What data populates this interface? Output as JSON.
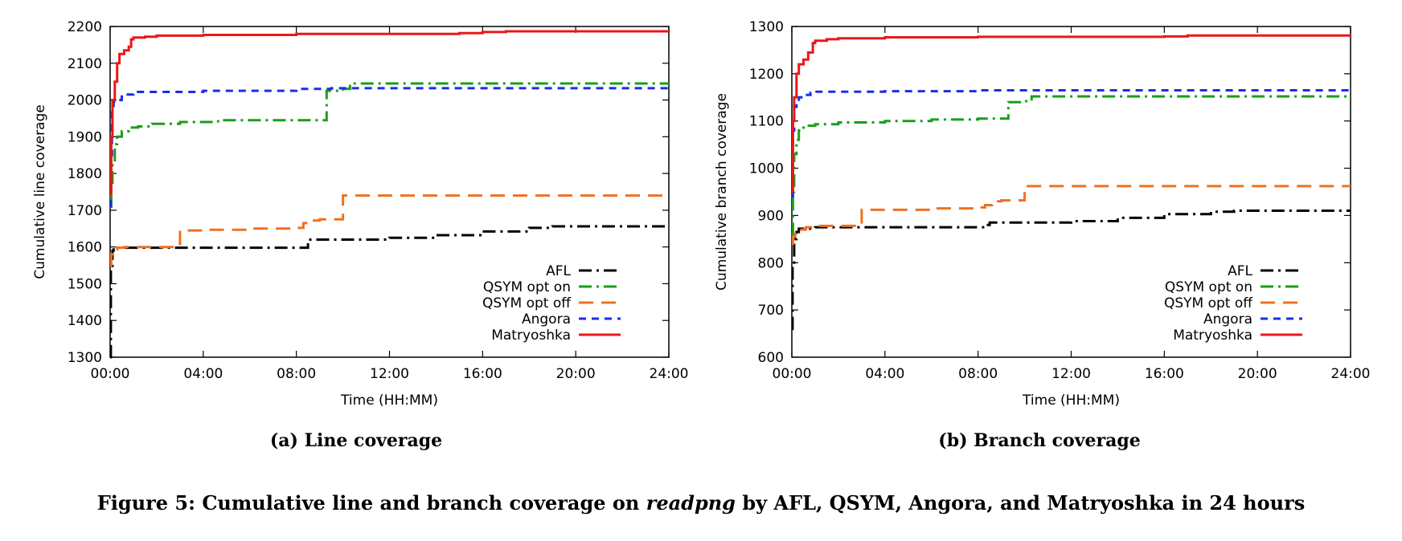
{
  "figure": {
    "caption_prefix": "Figure 5: Cumulative line and branch coverage on ",
    "caption_italic": "readpng",
    "caption_suffix": " by AFL, QSYM, Angora, and Matryoshka in 24 hours"
  },
  "chart_data": [
    {
      "type": "line",
      "caption": "(a) Line coverage",
      "xlabel": "Time (HH:MM)",
      "ylabel": "Cumulative line coverage",
      "xlim": [
        0,
        24
      ],
      "ylim": [
        1300,
        2200
      ],
      "xticks": [
        0,
        4,
        8,
        12,
        16,
        20,
        24
      ],
      "xtick_labels": [
        "00:00",
        "04:00",
        "08:00",
        "12:00",
        "16:00",
        "20:00",
        "24:00"
      ],
      "yticks": [
        1300,
        1400,
        1500,
        1600,
        1700,
        1800,
        1900,
        2000,
        2100,
        2200
      ],
      "grid": false,
      "legend_position": "bottom-right",
      "series": [
        {
          "name": "AFL",
          "color": "#000000",
          "dash": "dashdot",
          "x": [
            0,
            0.03,
            0.1,
            0.15,
            2,
            8.3,
            8.5,
            10,
            12,
            14,
            16,
            18,
            19,
            20,
            24
          ],
          "y": [
            1300,
            1540,
            1590,
            1598,
            1598,
            1598,
            1620,
            1620,
            1625,
            1632,
            1642,
            1652,
            1656,
            1656,
            1656
          ]
        },
        {
          "name": "QSYM opt on",
          "color": "#1a9e1a",
          "dash": "dashdot",
          "x": [
            0,
            0.05,
            0.1,
            0.2,
            0.3,
            0.5,
            0.8,
            1.2,
            1.8,
            3,
            4.5,
            4.8,
            6,
            8,
            9.2,
            9.3,
            10,
            10.3,
            12,
            24
          ],
          "y": [
            1710,
            1760,
            1830,
            1880,
            1900,
            1915,
            1925,
            1928,
            1935,
            1940,
            1942,
            1945,
            1945,
            1945,
            1945,
            2025,
            2030,
            2045,
            2045,
            2045
          ]
        },
        {
          "name": "QSYM opt off",
          "color": "#f07020",
          "dash": "dash",
          "x": [
            0,
            0.05,
            0.15,
            0.3,
            0.6,
            1,
            2.9,
            3,
            4,
            6,
            8,
            8.3,
            8.6,
            9,
            9.9,
            10,
            12,
            24
          ],
          "y": [
            1550,
            1580,
            1593,
            1598,
            1600,
            1600,
            1602,
            1645,
            1647,
            1650,
            1652,
            1665,
            1672,
            1675,
            1675,
            1740,
            1740,
            1740
          ]
        },
        {
          "name": "Angora",
          "color": "#1a2ee8",
          "dash": "shortdash",
          "x": [
            0,
            0.03,
            0.08,
            0.15,
            0.25,
            0.5,
            1,
            4,
            8,
            9.5,
            12,
            24
          ],
          "y": [
            1710,
            1850,
            1980,
            1995,
            2000,
            2015,
            2022,
            2025,
            2030,
            2032,
            2032,
            2032
          ]
        },
        {
          "name": "Matryoshka",
          "color": "#e81818",
          "dash": "solid",
          "x": [
            0,
            0.05,
            0.1,
            0.2,
            0.3,
            0.4,
            0.6,
            0.8,
            0.9,
            1,
            1.5,
            2,
            4,
            8,
            12,
            15,
            16,
            17,
            24
          ],
          "y": [
            1745,
            1900,
            2000,
            2050,
            2100,
            2125,
            2135,
            2145,
            2165,
            2170,
            2172,
            2175,
            2177,
            2180,
            2180,
            2182,
            2185,
            2187,
            2187
          ]
        }
      ]
    },
    {
      "type": "line",
      "caption": "(b) Branch coverage",
      "xlabel": "Time (HH:MM)",
      "ylabel": "Cumulative branch coverage",
      "xlim": [
        0,
        24
      ],
      "ylim": [
        600,
        1300
      ],
      "xticks": [
        0,
        4,
        8,
        12,
        16,
        20,
        24
      ],
      "xtick_labels": [
        "00:00",
        "04:00",
        "08:00",
        "12:00",
        "16:00",
        "20:00",
        "24:00"
      ],
      "yticks": [
        600,
        700,
        800,
        900,
        1000,
        1100,
        1200,
        1300
      ],
      "grid": false,
      "legend_position": "bottom-right",
      "series": [
        {
          "name": "AFL",
          "color": "#000000",
          "dash": "dashdot",
          "x": [
            0,
            0.03,
            0.1,
            0.2,
            0.3,
            1,
            4,
            8,
            8.3,
            8.5,
            10,
            12,
            14,
            16,
            18,
            19,
            20,
            24
          ],
          "y": [
            660,
            800,
            850,
            865,
            872,
            875,
            875,
            875,
            880,
            885,
            885,
            888,
            895,
            903,
            908,
            910,
            910,
            910
          ]
        },
        {
          "name": "QSYM opt on",
          "color": "#1a9e1a",
          "dash": "dashdot",
          "x": [
            0,
            0.05,
            0.1,
            0.2,
            0.3,
            0.5,
            1,
            2,
            4,
            6,
            8,
            9.2,
            9.3,
            10,
            10.3,
            12,
            24
          ],
          "y": [
            860,
            950,
            1030,
            1060,
            1080,
            1090,
            1093,
            1097,
            1100,
            1103,
            1105,
            1105,
            1140,
            1142,
            1152,
            1152,
            1152
          ]
        },
        {
          "name": "QSYM opt off",
          "color": "#f07020",
          "dash": "dash",
          "x": [
            0,
            0.05,
            0.15,
            0.3,
            0.6,
            1,
            2.9,
            3,
            4,
            6,
            8,
            8.3,
            8.6,
            9,
            9.9,
            10,
            12,
            24
          ],
          "y": [
            840,
            855,
            865,
            870,
            875,
            878,
            880,
            912,
            912,
            915,
            917,
            922,
            930,
            932,
            932,
            962,
            962,
            962
          ]
        },
        {
          "name": "Angora",
          "color": "#1a2ee8",
          "dash": "shortdash",
          "x": [
            0,
            0.05,
            0.1,
            0.2,
            0.3,
            0.5,
            0.8,
            1,
            4,
            8,
            12,
            24
          ],
          "y": [
            940,
            1080,
            1130,
            1145,
            1150,
            1155,
            1160,
            1162,
            1163,
            1165,
            1165,
            1165
          ]
        },
        {
          "name": "Matryoshka",
          "color": "#e81818",
          "dash": "solid",
          "x": [
            0,
            0.05,
            0.1,
            0.2,
            0.3,
            0.5,
            0.7,
            0.9,
            1,
            1.5,
            2,
            4,
            8,
            12,
            16,
            17,
            24
          ],
          "y": [
            950,
            1100,
            1150,
            1200,
            1220,
            1230,
            1245,
            1265,
            1270,
            1273,
            1275,
            1277,
            1278,
            1278,
            1279,
            1281,
            1281
          ]
        }
      ]
    }
  ]
}
